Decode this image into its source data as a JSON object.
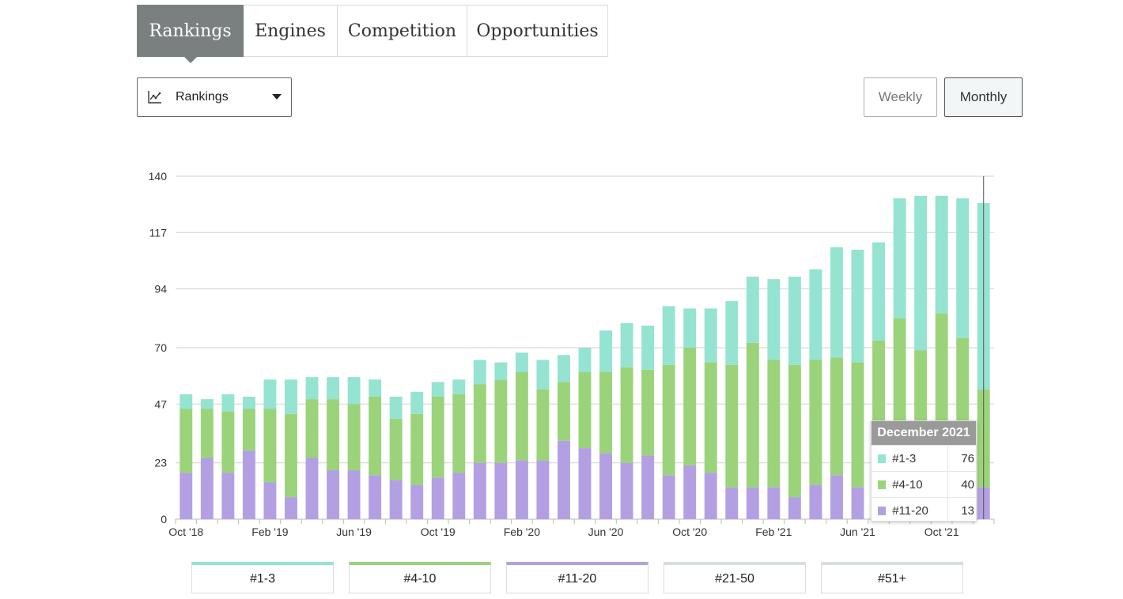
{
  "tabs": [
    {
      "label": "Rankings",
      "active": true
    },
    {
      "label": "Engines",
      "active": false
    },
    {
      "label": "Competition",
      "active": false
    },
    {
      "label": "Opportunities",
      "active": false
    }
  ],
  "dropdown": {
    "label": "Rankings",
    "icon": "line-chart-icon"
  },
  "period": {
    "weekly": "Weekly",
    "monthly": "Monthly",
    "selected": "Monthly"
  },
  "colors": {
    "top3": "#95e3d1",
    "top10": "#9bd37a",
    "top20": "#b3a0e2",
    "top50": "#d9e0dc",
    "top51": "#d9e0dc"
  },
  "legend": [
    "#1-3",
    "#4-10",
    "#11-20",
    "#21-50",
    "#51+"
  ],
  "tooltip": {
    "title": "December 2021",
    "rows": [
      {
        "name": "#1-3",
        "value": "76"
      },
      {
        "name": "#4-10",
        "value": "40"
      },
      {
        "name": "#11-20",
        "value": "13"
      }
    ]
  },
  "chart_data": {
    "type": "bar",
    "stacked": true,
    "ylim": [
      0,
      140
    ],
    "yticks": [
      0,
      23,
      47,
      70,
      94,
      117,
      140
    ],
    "grid": true,
    "categories": [
      "Oct '18",
      "Nov '18",
      "Dec '18",
      "Jan '19",
      "Feb '19",
      "Mar '19",
      "Apr '19",
      "May '19",
      "Jun '19",
      "Jul '19",
      "Aug '19",
      "Sep '19",
      "Oct '19",
      "Nov '19",
      "Dec '19",
      "Jan '20",
      "Feb '20",
      "Mar '20",
      "Apr '20",
      "May '20",
      "Jun '20",
      "Jul '20",
      "Aug '20",
      "Sep '20",
      "Oct '20",
      "Nov '20",
      "Dec '20",
      "Jan '21",
      "Feb '21",
      "Mar '21",
      "Apr '21",
      "May '21",
      "Jun '21",
      "Jul '21",
      "Aug '21",
      "Sep '21",
      "Oct '21",
      "Nov '21",
      "Dec '21"
    ],
    "xtick_labels": [
      "Oct '18",
      "Feb '19",
      "Jun '19",
      "Oct '19",
      "Feb '20",
      "Jun '20",
      "Oct '20",
      "Feb '21",
      "Jun '21",
      "Oct '21"
    ],
    "series": [
      {
        "name": "#11-20",
        "values": [
          19,
          25,
          19,
          28,
          15,
          9,
          25,
          20,
          20,
          18,
          16,
          14,
          17,
          19,
          23,
          23,
          24,
          24,
          32,
          29,
          27,
          23,
          26,
          18,
          22,
          19,
          13,
          13,
          13,
          9,
          14,
          18,
          13,
          15,
          15,
          15,
          15,
          15,
          13
        ]
      },
      {
        "name": "#4-10",
        "values": [
          26,
          20,
          25,
          17,
          30,
          34,
          24,
          29,
          27,
          32,
          25,
          29,
          33,
          32,
          32,
          34,
          36,
          29,
          24,
          31,
          33,
          39,
          35,
          45,
          48,
          45,
          50,
          59,
          52,
          54,
          51,
          48,
          51,
          58,
          67,
          54,
          69,
          59,
          40
        ]
      },
      {
        "name": "#1-3",
        "values": [
          6,
          4,
          7,
          5,
          12,
          14,
          9,
          9,
          11,
          7,
          9,
          9,
          6,
          6,
          10,
          7,
          8,
          12,
          11,
          10,
          17,
          18,
          18,
          24,
          16,
          22,
          26,
          27,
          33,
          36,
          37,
          45,
          46,
          40,
          49,
          63,
          48,
          57,
          76
        ]
      }
    ]
  }
}
